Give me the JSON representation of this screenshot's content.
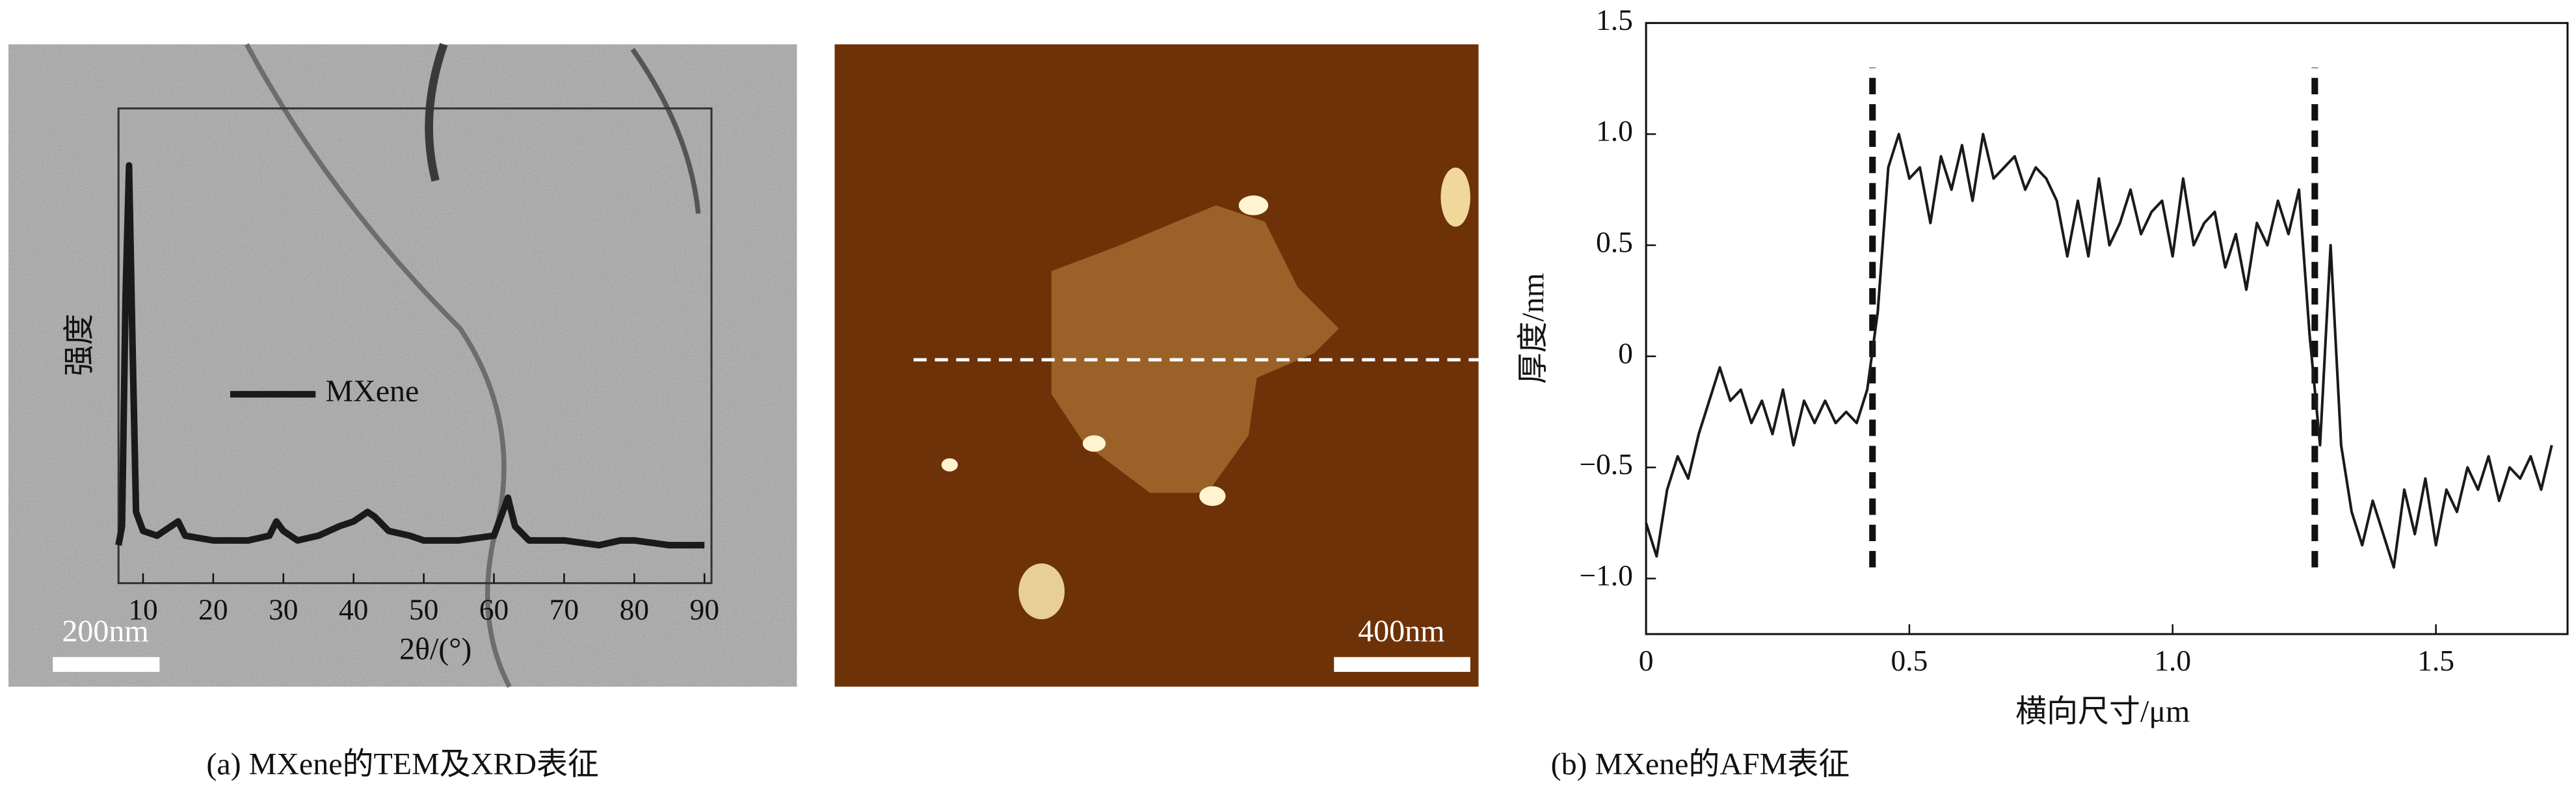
{
  "figure": {
    "captions": [
      "(a) MXene的TEM及XRD表征",
      "(b) MXene的AFM表征"
    ],
    "scale_bars": [
      "200nm",
      "400nm"
    ]
  },
  "chart_data": [
    {
      "type": "line",
      "xlabel": "2θ/(°)",
      "ylabel": "强度",
      "x": [
        6.5,
        7,
        7.5,
        8,
        8.5,
        9,
        10,
        12,
        14,
        15,
        16,
        20,
        25,
        28,
        29,
        30,
        32,
        35,
        38,
        40,
        42,
        43,
        45,
        48,
        50,
        55,
        60,
        61,
        62,
        63,
        65,
        70,
        75,
        78,
        80,
        85,
        90
      ],
      "series": [
        {
          "name": "MXene",
          "color": "#1a1a1a",
          "values": [
            8,
            12,
            60,
            88,
            50,
            15,
            11,
            10,
            12,
            13,
            10,
            9,
            9,
            10,
            13,
            11,
            9,
            10,
            12,
            13,
            15,
            14,
            11,
            10,
            9,
            9,
            10,
            14,
            18,
            12,
            9,
            9,
            8,
            9,
            9,
            8,
            8
          ]
        }
      ],
      "xlim": [
        6.5,
        91
      ],
      "ylim": [
        0,
        100
      ],
      "xticks": [
        10,
        20,
        30,
        40,
        50,
        60,
        70,
        80,
        90
      ]
    },
    {
      "type": "line",
      "xlabel": "横向尺寸/μm",
      "ylabel": "厚度/nm",
      "x": [
        0,
        0.02,
        0.04,
        0.06,
        0.08,
        0.1,
        0.12,
        0.14,
        0.16,
        0.18,
        0.2,
        0.22,
        0.24,
        0.26,
        0.28,
        0.3,
        0.32,
        0.34,
        0.36,
        0.38,
        0.4,
        0.42,
        0.44,
        0.46,
        0.48,
        0.5,
        0.52,
        0.54,
        0.56,
        0.58,
        0.6,
        0.62,
        0.64,
        0.66,
        0.68,
        0.7,
        0.72,
        0.74,
        0.76,
        0.78,
        0.8,
        0.82,
        0.84,
        0.86,
        0.88,
        0.9,
        0.92,
        0.94,
        0.96,
        0.98,
        1,
        1.02,
        1.04,
        1.06,
        1.08,
        1.1,
        1.12,
        1.14,
        1.16,
        1.18,
        1.2,
        1.22,
        1.24,
        1.26,
        1.28,
        1.3,
        1.32,
        1.34,
        1.36,
        1.38,
        1.4,
        1.42,
        1.44,
        1.46,
        1.48,
        1.5,
        1.52,
        1.54,
        1.56,
        1.58,
        1.6,
        1.62,
        1.64,
        1.66,
        1.68,
        1.7,
        1.72
      ],
      "series": [
        {
          "color": "#1a1a1a",
          "values": [
            -0.75,
            -0.9,
            -0.6,
            -0.45,
            -0.55,
            -0.35,
            -0.2,
            -0.05,
            -0.2,
            -0.15,
            -0.3,
            -0.2,
            -0.35,
            -0.15,
            -0.4,
            -0.2,
            -0.3,
            -0.2,
            -0.3,
            -0.25,
            -0.3,
            -0.15,
            0.2,
            0.85,
            1.0,
            0.8,
            0.85,
            0.6,
            0.9,
            0.75,
            0.95,
            0.7,
            1.0,
            0.8,
            0.85,
            0.9,
            0.75,
            0.85,
            0.8,
            0.7,
            0.45,
            0.7,
            0.45,
            0.8,
            0.5,
            0.6,
            0.75,
            0.55,
            0.65,
            0.7,
            0.45,
            0.8,
            0.5,
            0.6,
            0.65,
            0.4,
            0.55,
            0.3,
            0.6,
            0.5,
            0.7,
            0.55,
            0.75,
            0.1,
            -0.4,
            0.5,
            -0.4,
            -0.7,
            -0.85,
            -0.65,
            -0.8,
            -0.95,
            -0.6,
            -0.8,
            -0.55,
            -0.85,
            -0.6,
            -0.7,
            -0.5,
            -0.6,
            -0.45,
            -0.65,
            -0.5,
            -0.55,
            -0.45,
            -0.6,
            -0.4
          ]
        }
      ],
      "xlim": [
        0,
        1.75
      ],
      "ylim": [
        -1.25,
        1.5
      ],
      "xticks": [
        0,
        0.5,
        {
          "value": 1,
          "label": "1.0"
        },
        1.5
      ],
      "yticks": [
        {
          "value": -1,
          "label": "−1.0"
        },
        {
          "value": -0.5,
          "label": "−0.5"
        },
        0,
        0.5,
        {
          "value": 1,
          "label": "1.0"
        },
        1.5
      ],
      "reference_lines": {
        "x": [
          0.43,
          1.27
        ],
        "y_range": [
          -0.95,
          1.3
        ]
      }
    }
  ]
}
